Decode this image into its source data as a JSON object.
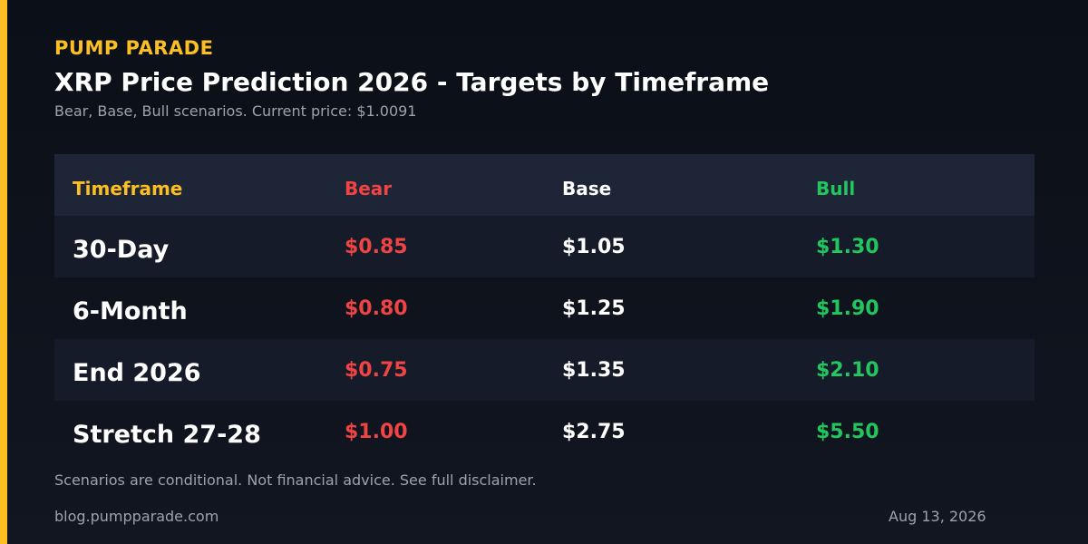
{
  "brand": "PUMP PARADE",
  "title": "XRP Price Prediction 2026 - Targets by Timeframe",
  "subtitle": "Bear, Base, Bull scenarios. Current price: $1.0091",
  "table": {
    "headers": [
      "Timeframe",
      "Bear",
      "Base",
      "Bull"
    ],
    "rows": [
      {
        "timeframe": "30-Day",
        "bear": "$0.85",
        "base": "$1.05",
        "bull": "$1.30"
      },
      {
        "timeframe": "6-Month",
        "bear": "$0.80",
        "base": "$1.25",
        "bull": "$1.90"
      },
      {
        "timeframe": "End 2026",
        "bear": "$0.75",
        "base": "$1.35",
        "bull": "$2.10"
      },
      {
        "timeframe": "Stretch 27-28",
        "bear": "$1.00",
        "base": "$2.75",
        "bull": "$5.50"
      }
    ]
  },
  "footer": {
    "disclaimer": "Scenarios are conditional. Not financial advice. See full disclaimer.",
    "site": "blog.pumpparade.com",
    "date": "Aug 13, 2026"
  },
  "colors": {
    "accent": "#fbbf24",
    "bear": "#ef4444",
    "bull": "#22c55e",
    "background": "#0b0f17"
  }
}
